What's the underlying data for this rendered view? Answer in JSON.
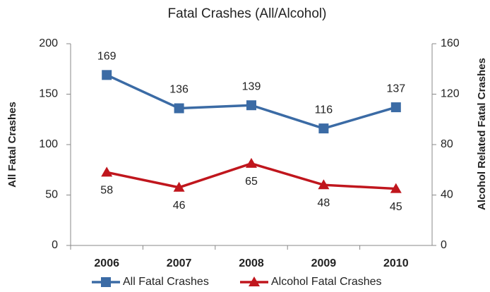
{
  "chart_data": {
    "type": "line",
    "title": "Fatal Crashes (All/Alcohol)",
    "y_label": "All Fatal Crashes",
    "y2_label": "Alcohol Related Fatal Crashes",
    "categories": [
      "2006",
      "2007",
      "2008",
      "2009",
      "2010"
    ],
    "series": [
      {
        "name": "All Fatal Crashes",
        "color": "#3b6ba5",
        "marker": "square",
        "values": [
          169,
          136,
          139,
          116,
          137
        ]
      },
      {
        "name": "Alcohol Fatal Crashes",
        "color": "#c0161d",
        "marker": "triangle",
        "axis": "y2",
        "values": [
          58,
          46,
          65,
          48,
          45
        ]
      }
    ],
    "ylim": [
      0,
      200
    ],
    "yticks": [
      0,
      50,
      100,
      150,
      200
    ],
    "y2lim": [
      0,
      160
    ],
    "y2ticks": [
      0,
      40,
      80,
      120,
      160
    ],
    "grid": false,
    "legend": "bottom"
  }
}
